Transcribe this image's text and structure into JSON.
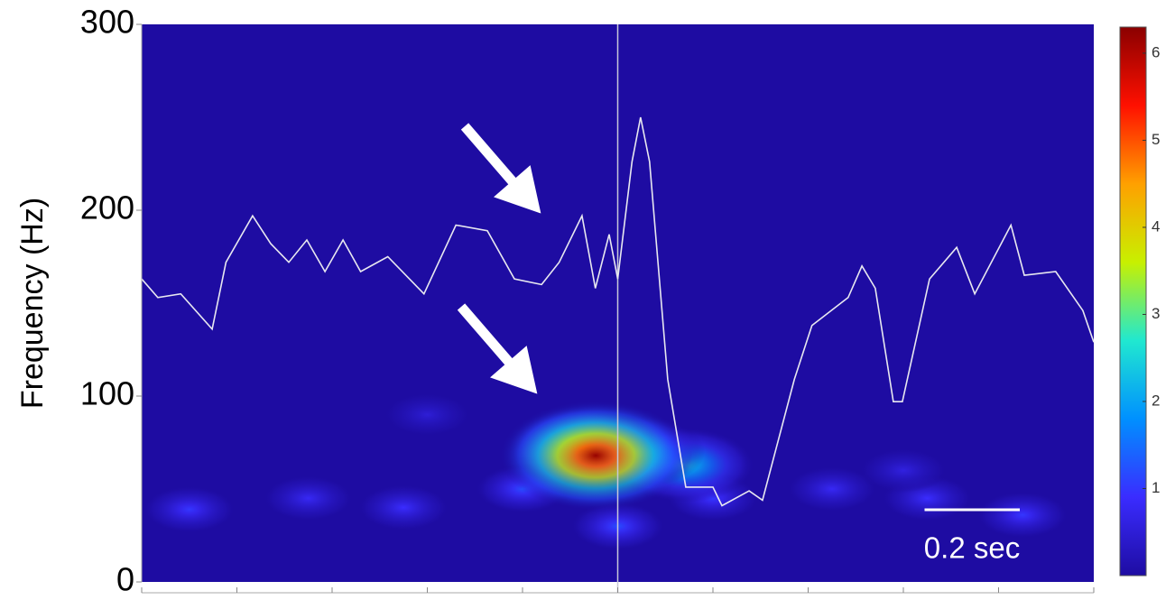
{
  "chart_data": {
    "type": "spectrogram",
    "y_label": "Frequency (Hz)",
    "ylim": [
      0,
      300
    ],
    "yticks": [
      0,
      100,
      200,
      300
    ],
    "xlim": [
      0,
      2
    ],
    "xticks": [
      0,
      0.2,
      0.4,
      0.6,
      0.8,
      1,
      1.2,
      1.4,
      1.6,
      1.8,
      2
    ],
    "event_line_x": 1,
    "colormap": [
      "#1e0ca2",
      "#3a2cff",
      "#0090ff",
      "#20e8d0",
      "#c8f000",
      "#ffa000",
      "#ff1000",
      "#8a0000"
    ],
    "clim": [
      0,
      6.3
    ],
    "cticks": [
      1,
      2,
      3,
      4,
      5,
      6
    ],
    "blobs": [
      {
        "x": 0.1,
        "y": 39,
        "value": 1.0
      },
      {
        "x": 0.35,
        "y": 45,
        "value": 0.8
      },
      {
        "x": 0.55,
        "y": 40,
        "value": 0.9
      },
      {
        "x": 0.8,
        "y": 50,
        "value": 1.2
      },
      {
        "x": 1.2,
        "y": 45,
        "value": 1.0
      },
      {
        "x": 1.45,
        "y": 50,
        "value": 0.8
      },
      {
        "x": 1.65,
        "y": 45,
        "value": 0.9
      },
      {
        "x": 1.85,
        "y": 36,
        "value": 1.0
      },
      {
        "x": 1.0,
        "y": 30,
        "value": 1.2
      },
      {
        "x": 0.6,
        "y": 90,
        "value": 0.5
      },
      {
        "x": 1.6,
        "y": 60,
        "value": 0.6
      },
      {
        "x": 1.14,
        "y": 63,
        "value": 2.5
      },
      {
        "x": 1.04,
        "y": 70,
        "value": 2.2
      },
      {
        "x": 0.93,
        "y": 72,
        "value": 3.2
      },
      {
        "x": 0.954,
        "y": 68,
        "value": 6.2
      }
    ],
    "trace": {
      "color": "#e8e8f0",
      "x": [
        0,
        0.034,
        0.082,
        0.148,
        0.177,
        0.233,
        0.271,
        0.309,
        0.347,
        0.385,
        0.423,
        0.46,
        0.517,
        0.593,
        0.66,
        0.726,
        0.783,
        0.84,
        0.877,
        0.925,
        0.953,
        0.982,
        1.0,
        1.03,
        1.048,
        1.067,
        1.105,
        1.143,
        1.2,
        1.219,
        1.276,
        1.304,
        1.371,
        1.408,
        1.484,
        1.513,
        1.541,
        1.579,
        1.598,
        1.655,
        1.712,
        1.75,
        1.826,
        1.854,
        1.92,
        1.977,
        2.0
      ],
      "values": [
        163,
        153,
        155,
        136,
        172,
        197,
        182,
        172,
        184,
        167,
        184,
        167,
        175,
        155,
        192,
        189,
        163,
        160,
        172,
        197,
        158,
        187,
        163,
        226,
        250,
        226,
        109,
        51,
        51,
        41,
        49,
        44,
        109,
        138,
        153,
        170,
        158,
        97,
        97,
        163,
        180,
        155,
        192,
        165,
        167,
        146,
        129
      ]
    },
    "scale_bar": {
      "label": "0.2 sec",
      "length": 0.2
    }
  }
}
